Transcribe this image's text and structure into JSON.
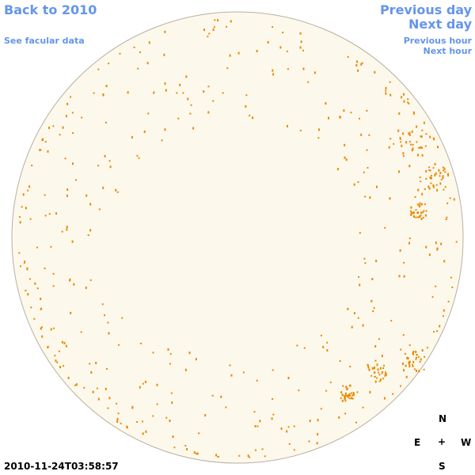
{
  "nav": {
    "back": "Back to 2010",
    "facular": "See facular data",
    "previous_day": "Previous day",
    "next_day": "Next day",
    "previous_hour": "Previous hour",
    "next_hour": "Next hour"
  },
  "timestamp": "2010-11-24T03:58:57",
  "compass": {
    "north": "N",
    "east": "E",
    "center": "+",
    "west": "W",
    "south": "S"
  }
}
